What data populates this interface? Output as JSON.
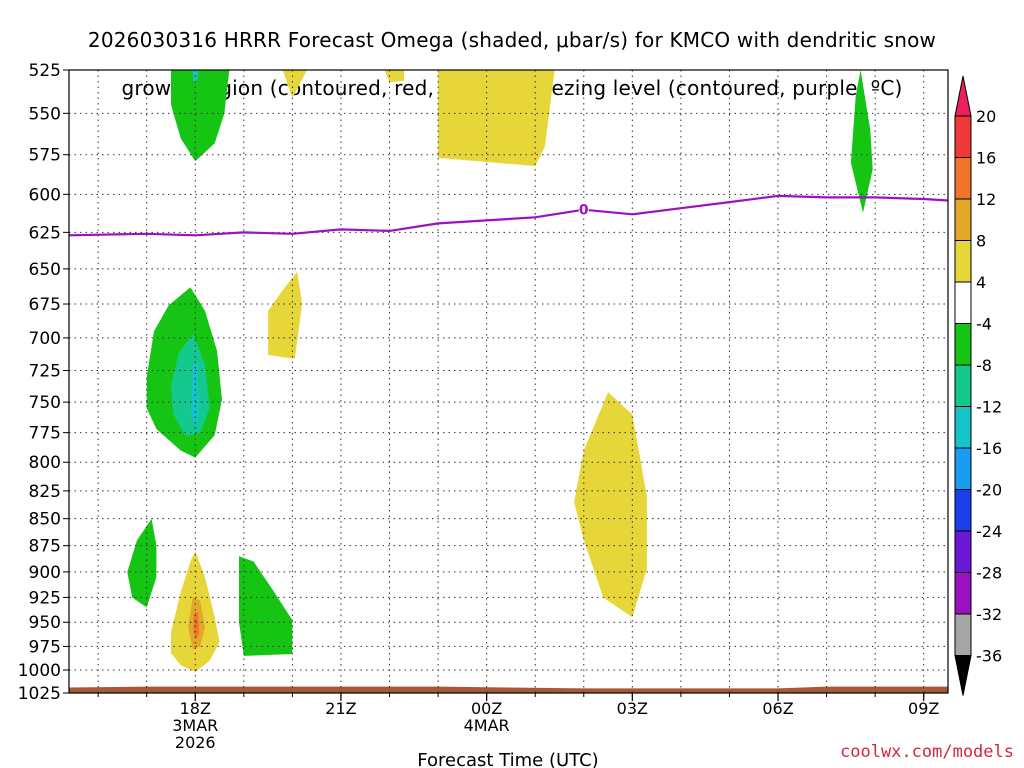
{
  "title_line1": "2026030316 HRRR Forecast Omega (shaded, μbar/s) for KMCO with dendritic snow",
  "title_line2": "growth region (contoured, red, ºC) and freezing level (contoured, purple, ºC)",
  "credit": "coolwx.com/models",
  "chart_data": {
    "type": "heatmap",
    "xlabel": "Forecast Time (UTC)",
    "ylabel": "Pressure (hPa)",
    "x_range_hours": [
      -2.6,
      15.5
    ],
    "x_note": "hours relative to 2026-03-03 18Z",
    "y_range": [
      525,
      1025
    ],
    "y_scale": "log-pressure, inverted",
    "grid": true,
    "y_ticks": [
      525,
      550,
      575,
      600,
      625,
      650,
      675,
      700,
      725,
      750,
      775,
      800,
      825,
      850,
      875,
      900,
      925,
      950,
      975,
      1000,
      1025
    ],
    "x_ticks": [
      {
        "hour": 0,
        "lines": [
          "18Z",
          "3MAR",
          "2026"
        ]
      },
      {
        "hour": 3,
        "lines": [
          "21Z"
        ]
      },
      {
        "hour": 6,
        "lines": [
          "00Z",
          "4MAR"
        ]
      },
      {
        "hour": 9,
        "lines": [
          "03Z"
        ]
      },
      {
        "hour": 12,
        "lines": [
          "06Z"
        ]
      },
      {
        "hour": 15,
        "lines": [
          "09Z"
        ]
      }
    ],
    "colorbar": {
      "labels": [
        "20",
        "16",
        "12",
        "8",
        "4",
        "-4",
        "-8",
        "-12",
        "-16",
        "-20",
        "-24",
        "-28",
        "-32",
        "-36"
      ],
      "colors": [
        "#ed1f5b",
        "#f03a3a",
        "#f0742b",
        "#e3a82a",
        "#e6d639",
        "#ffffff",
        "#16c414",
        "#13c98d",
        "#16c3c9",
        "#1a9cf2",
        "#1a3ee8",
        "#6a17d6",
        "#9b12c0",
        "#a6a6a6",
        "#000000"
      ],
      "labels_align": "top"
    },
    "freezing_level": {
      "label": "0",
      "color": "#9b12c0",
      "points": [
        [
          -2.6,
          627
        ],
        [
          -1,
          626
        ],
        [
          0,
          627
        ],
        [
          1,
          625
        ],
        [
          2,
          626
        ],
        [
          3,
          623
        ],
        [
          4,
          624
        ],
        [
          5,
          619
        ],
        [
          6,
          617
        ],
        [
          7,
          615
        ],
        [
          8,
          610
        ],
        [
          9,
          613
        ],
        [
          10,
          609
        ],
        [
          11,
          605
        ],
        [
          12,
          601
        ],
        [
          13,
          602
        ],
        [
          14,
          602
        ],
        [
          15,
          603
        ],
        [
          15.5,
          604
        ]
      ]
    },
    "omega_regions": [
      {
        "value": -6,
        "color": "#16c414",
        "points": [
          [
            -0.5,
            525
          ],
          [
            0.7,
            525
          ],
          [
            0.6,
            550
          ],
          [
            0.4,
            568
          ],
          [
            0,
            579
          ],
          [
            -0.3,
            565
          ],
          [
            -0.5,
            545
          ]
        ]
      },
      {
        "value": -6,
        "color": "#16c414",
        "points": [
          [
            -1,
            730
          ],
          [
            -0.85,
            695
          ],
          [
            -0.55,
            676
          ],
          [
            -0.1,
            663
          ],
          [
            0.2,
            680
          ],
          [
            0.45,
            710
          ],
          [
            0.55,
            748
          ],
          [
            0.4,
            777
          ],
          [
            0,
            796
          ],
          [
            -0.3,
            790
          ],
          [
            -0.8,
            772
          ],
          [
            -1,
            755
          ]
        ]
      },
      {
        "value": -10,
        "color": "#13c98d",
        "points": [
          [
            -0.5,
            738
          ],
          [
            -0.35,
            712
          ],
          [
            -0.05,
            697
          ],
          [
            0.2,
            720
          ],
          [
            0.3,
            755
          ],
          [
            0.1,
            775
          ],
          [
            -0.2,
            778
          ],
          [
            -0.45,
            760
          ]
        ]
      },
      {
        "value": -14,
        "color": "#16c3c9",
        "points": [
          [
            -0.05,
            720
          ],
          [
            0.05,
            720
          ],
          [
            0.08,
            760
          ],
          [
            0,
            772
          ],
          [
            -0.08,
            760
          ]
        ]
      },
      {
        "value": -14,
        "color": "#16c3c9",
        "points": [
          [
            -0.06,
            525
          ],
          [
            0.06,
            525
          ],
          [
            0.03,
            532
          ],
          [
            -0.03,
            532
          ]
        ]
      },
      {
        "value": -6,
        "color": "#16c414",
        "points": [
          [
            -1.4,
            900
          ],
          [
            -1.2,
            870
          ],
          [
            -0.9,
            850
          ],
          [
            -0.8,
            875
          ],
          [
            -0.8,
            905
          ],
          [
            -1.0,
            935
          ],
          [
            -1.3,
            925
          ]
        ]
      },
      {
        "value": -6,
        "color": "#16c414",
        "points": [
          [
            0.9,
            885
          ],
          [
            1.2,
            890
          ],
          [
            1.6,
            918
          ],
          [
            2,
            948
          ],
          [
            2.0,
            983
          ],
          [
            1.0,
            985
          ],
          [
            0.9,
            950
          ]
        ]
      },
      {
        "value": -6,
        "color": "#16c414",
        "points": [
          [
            13.7,
            525
          ],
          [
            13.9,
            560
          ],
          [
            13.95,
            584
          ],
          [
            13.75,
            612
          ],
          [
            13.5,
            580
          ],
          [
            13.6,
            540
          ]
        ]
      },
      {
        "value": 6,
        "color": "#e6d639",
        "points": [
          [
            -0.5,
            960
          ],
          [
            -0.3,
            920
          ],
          [
            -0.1,
            890
          ],
          [
            0,
            880
          ],
          [
            0.2,
            905
          ],
          [
            0.4,
            945
          ],
          [
            0.5,
            970
          ],
          [
            0.3,
            990
          ],
          [
            0,
            1002
          ],
          [
            -0.3,
            995
          ],
          [
            -0.5,
            982
          ]
        ]
      },
      {
        "value": 10,
        "color": "#e3a82a",
        "points": [
          [
            -0.15,
            955
          ],
          [
            -0.05,
            925
          ],
          [
            0.1,
            928
          ],
          [
            0.2,
            955
          ],
          [
            0.1,
            975
          ],
          [
            -0.05,
            978
          ]
        ]
      },
      {
        "value": 14,
        "color": "#f0742b",
        "points": [
          [
            -0.03,
            940
          ],
          [
            0.06,
            940
          ],
          [
            0.08,
            960
          ],
          [
            0.02,
            968
          ],
          [
            -0.04,
            960
          ]
        ]
      },
      {
        "value": 6,
        "color": "#e6d639",
        "points": [
          [
            1.5,
            680
          ],
          [
            1.8,
            665
          ],
          [
            2.1,
            652
          ],
          [
            2.2,
            675
          ],
          [
            2.05,
            716
          ],
          [
            1.5,
            713
          ]
        ]
      },
      {
        "value": 6,
        "color": "#e6d639",
        "points": [
          [
            1.8,
            525
          ],
          [
            2.3,
            525
          ],
          [
            2.0,
            541
          ]
        ]
      },
      {
        "value": 6,
        "color": "#e6d639",
        "points": [
          [
            3.9,
            525
          ],
          [
            4.3,
            525
          ],
          [
            4.3,
            531
          ],
          [
            4.0,
            532
          ]
        ]
      },
      {
        "value": 6,
        "color": "#e6d639",
        "points": [
          [
            5.0,
            525
          ],
          [
            7.4,
            525
          ],
          [
            7.2,
            570
          ],
          [
            7.0,
            582
          ],
          [
            5.0,
            577
          ]
        ]
      },
      {
        "value": 6,
        "color": "#e6d639",
        "points": [
          [
            8.0,
            790
          ],
          [
            8.5,
            742
          ],
          [
            9.0,
            760
          ],
          [
            9.3,
            830
          ],
          [
            9.3,
            897
          ],
          [
            9.0,
            945
          ],
          [
            8.4,
            925
          ],
          [
            8.0,
            870
          ],
          [
            7.8,
            835
          ]
        ]
      }
    ],
    "terrain": {
      "color": "#a55a35",
      "points": [
        [
          -2.6,
          1019
        ],
        [
          -1,
          1018
        ],
        [
          5,
          1018
        ],
        [
          8,
          1020
        ],
        [
          11,
          1020
        ],
        [
          12,
          1020
        ],
        [
          13,
          1018
        ],
        [
          15.5,
          1018
        ]
      ]
    }
  }
}
